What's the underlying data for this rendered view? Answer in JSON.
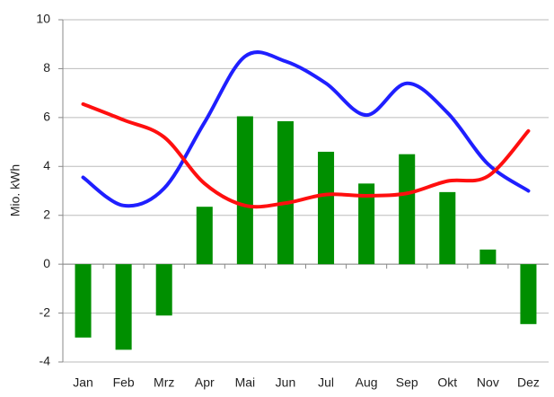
{
  "chart_data": {
    "type": "bar_line",
    "y_label": "Mio. kWh",
    "categories": [
      "Jan",
      "Feb",
      "Mrz",
      "Apr",
      "Mai",
      "Jun",
      "Jul",
      "Aug",
      "Sep",
      "Okt",
      "Nov",
      "Dez"
    ],
    "series": [
      {
        "type": "bar",
        "color": "#008f00",
        "values": [
          -3.0,
          -3.5,
          -2.1,
          2.35,
          6.05,
          5.85,
          4.6,
          3.3,
          4.5,
          2.95,
          0.6,
          -2.45
        ]
      },
      {
        "type": "line",
        "color": "#1f1fff",
        "values": [
          3.55,
          2.4,
          3.1,
          5.8,
          8.5,
          8.3,
          7.4,
          6.1,
          7.4,
          6.2,
          4.1,
          3.0
        ]
      },
      {
        "type": "line",
        "color": "#ff0f0f",
        "values": [
          6.55,
          5.9,
          5.2,
          3.3,
          2.4,
          2.5,
          2.85,
          2.8,
          2.9,
          3.4,
          3.6,
          5.45
        ]
      }
    ],
    "ylim": [
      -4,
      10
    ],
    "yticks": [
      -4,
      -2,
      0,
      2,
      4,
      6,
      8,
      10
    ],
    "grid": true
  }
}
